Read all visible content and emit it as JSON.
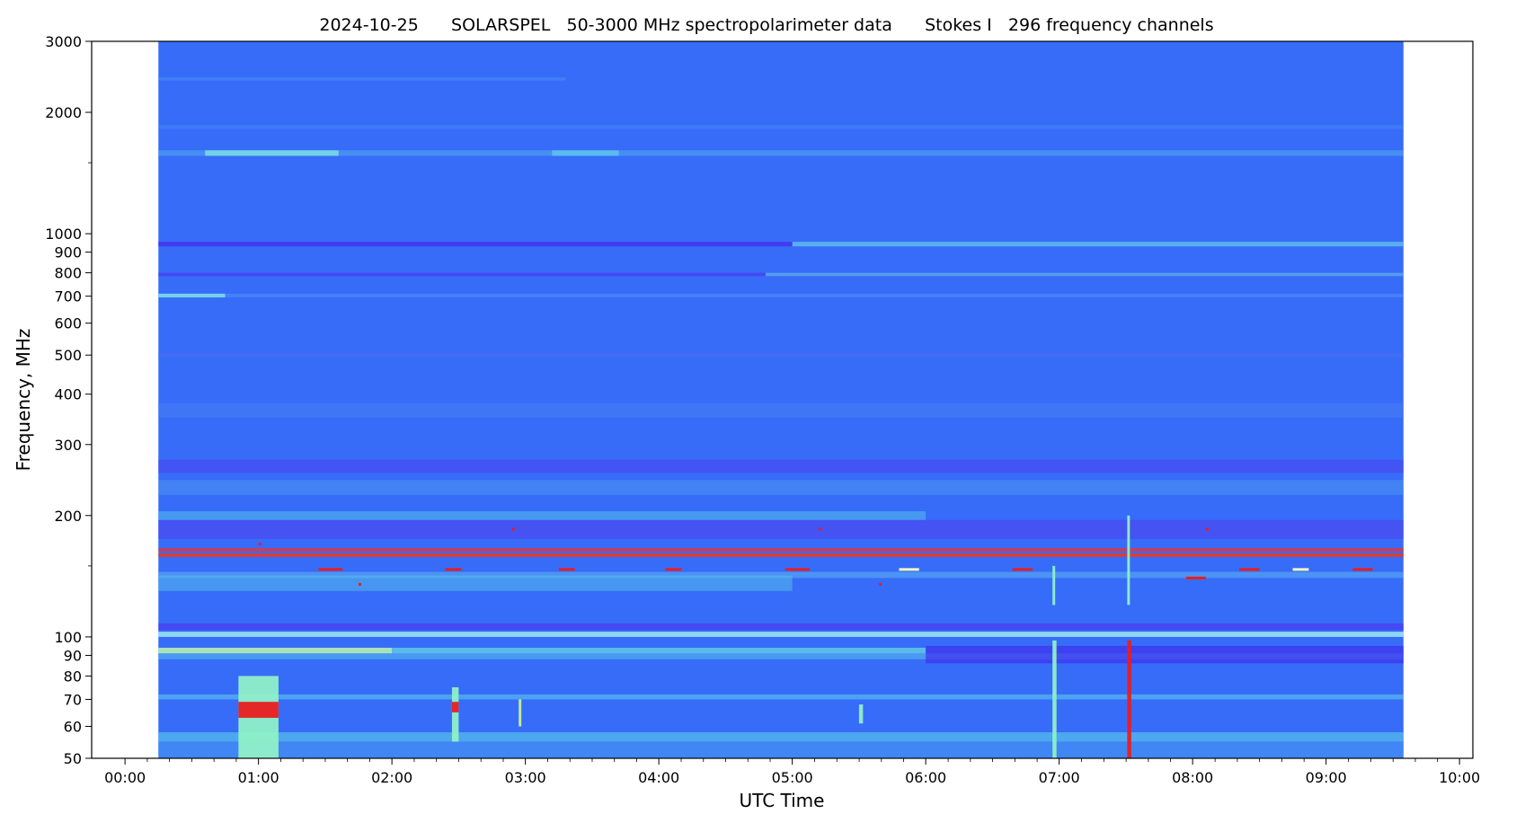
{
  "chart_data": {
    "type": "heatmap",
    "title": "2024-10-25      SOLARSPEL   50-3000 MHz spectropolarimeter data      Stokes I   296 frequency channels",
    "xlabel": "UTC Time",
    "ylabel": "Frequency, MHz",
    "x_unit": "hours",
    "xlim": [
      -0.25,
      10.1
    ],
    "data_time_range": [
      0.25,
      9.58
    ],
    "ylim": [
      50,
      3000
    ],
    "yscale": "log",
    "x_ticks": [
      {
        "value": 0,
        "label": "00:00"
      },
      {
        "value": 1,
        "label": "01:00"
      },
      {
        "value": 2,
        "label": "02:00"
      },
      {
        "value": 3,
        "label": "03:00"
      },
      {
        "value": 4,
        "label": "04:00"
      },
      {
        "value": 5,
        "label": "05:00"
      },
      {
        "value": 6,
        "label": "06:00"
      },
      {
        "value": 7,
        "label": "07:00"
      },
      {
        "value": 8,
        "label": "08:00"
      },
      {
        "value": 9,
        "label": "09:00"
      },
      {
        "value": 10,
        "label": "10:00"
      }
    ],
    "y_ticks": [
      {
        "value": 50,
        "label": "50"
      },
      {
        "value": 60,
        "label": "60"
      },
      {
        "value": 70,
        "label": "70"
      },
      {
        "value": 80,
        "label": "80"
      },
      {
        "value": 90,
        "label": "90"
      },
      {
        "value": 100,
        "label": "100"
      },
      {
        "value": 200,
        "label": "200"
      },
      {
        "value": 300,
        "label": "300"
      },
      {
        "value": 400,
        "label": "400"
      },
      {
        "value": 500,
        "label": "500"
      },
      {
        "value": 600,
        "label": "600"
      },
      {
        "value": 700,
        "label": "700"
      },
      {
        "value": 800,
        "label": "800"
      },
      {
        "value": 900,
        "label": "900"
      },
      {
        "value": 1000,
        "label": "1000"
      },
      {
        "value": 2000,
        "label": "2000"
      },
      {
        "value": 3000,
        "label": "3000"
      }
    ],
    "y_minor_ticks": [
      150,
      1500
    ],
    "x_minor_tick_step": 0.1667,
    "background_color": "#376cf9",
    "bands": [
      {
        "f_low": 2400,
        "f_high": 2440,
        "t_start": 0.25,
        "t_end": 3.3,
        "color": "#4a8cf5",
        "opacity": 0.6
      },
      {
        "f_low": 1560,
        "f_high": 1610,
        "t_start": 0.25,
        "t_end": 9.58,
        "color": "#4e9cf0",
        "opacity": 0.7
      },
      {
        "f_low": 1560,
        "f_high": 1610,
        "t_start": 0.6,
        "t_end": 1.6,
        "color": "#7fe3e0",
        "opacity": 0.8
      },
      {
        "f_low": 1560,
        "f_high": 1610,
        "t_start": 3.2,
        "t_end": 3.7,
        "color": "#5fc8ec",
        "opacity": 0.8
      },
      {
        "f_low": 1820,
        "f_high": 1860,
        "t_start": 0.25,
        "t_end": 9.58,
        "color": "#4588f3",
        "opacity": 0.5
      },
      {
        "f_low": 930,
        "f_high": 955,
        "t_start": 0.25,
        "t_end": 9.58,
        "color": "#4630ee",
        "opacity": 0.8
      },
      {
        "f_low": 930,
        "f_high": 955,
        "t_start": 5.0,
        "t_end": 9.58,
        "color": "#5fcaf0",
        "opacity": 0.8
      },
      {
        "f_low": 785,
        "f_high": 800,
        "t_start": 0.25,
        "t_end": 9.58,
        "color": "#4a3aee",
        "opacity": 0.7
      },
      {
        "f_low": 785,
        "f_high": 800,
        "t_start": 4.8,
        "t_end": 9.58,
        "color": "#5cc0ee",
        "opacity": 0.7
      },
      {
        "f_low": 695,
        "f_high": 710,
        "t_start": 0.25,
        "t_end": 9.58,
        "color": "#4f8ef4",
        "opacity": 0.6
      },
      {
        "f_low": 695,
        "f_high": 710,
        "t_start": 0.25,
        "t_end": 0.75,
        "color": "#7ad8e6",
        "opacity": 0.9
      },
      {
        "f_low": 495,
        "f_high": 505,
        "t_start": 0.25,
        "t_end": 9.58,
        "color": "#4c6ef2",
        "opacity": 0.6
      },
      {
        "f_low": 350,
        "f_high": 380,
        "t_start": 0.25,
        "t_end": 9.58,
        "color": "#4a7ef4",
        "opacity": 0.5
      },
      {
        "f_low": 255,
        "f_high": 275,
        "t_start": 0.25,
        "t_end": 9.58,
        "color": "#4a44ef",
        "opacity": 0.6
      },
      {
        "f_low": 225,
        "f_high": 245,
        "t_start": 0.25,
        "t_end": 9.58,
        "color": "#4f98f2",
        "opacity": 0.5
      },
      {
        "f_low": 175,
        "f_high": 195,
        "t_start": 0.25,
        "t_end": 9.58,
        "color": "#4e42ee",
        "opacity": 0.6
      },
      {
        "f_low": 195,
        "f_high": 205,
        "t_start": 0.25,
        "t_end": 6.0,
        "color": "#56c4ea",
        "opacity": 0.5
      },
      {
        "f_low": 163,
        "f_high": 166,
        "t_start": 0.25,
        "t_end": 9.58,
        "color": "#d83a4a",
        "opacity": 0.9
      },
      {
        "f_low": 158,
        "f_high": 161,
        "t_start": 0.25,
        "t_end": 9.58,
        "color": "#e23b2b",
        "opacity": 1.0
      },
      {
        "f_low": 140,
        "f_high": 145,
        "t_start": 0.25,
        "t_end": 9.58,
        "color": "#5aaef2",
        "opacity": 0.6
      },
      {
        "f_low": 130,
        "f_high": 142,
        "t_start": 0.25,
        "t_end": 5.0,
        "color": "#58c0ea",
        "opacity": 0.5
      },
      {
        "f_low": 104,
        "f_high": 108,
        "t_start": 0.25,
        "t_end": 9.58,
        "color": "#4a3aee",
        "opacity": 0.7
      },
      {
        "f_low": 100,
        "f_high": 103,
        "t_start": 0.25,
        "t_end": 9.58,
        "color": "#a6f2f2",
        "opacity": 0.8
      },
      {
        "f_low": 91,
        "f_high": 94,
        "t_start": 0.25,
        "t_end": 2.0,
        "color": "#b4f0b0",
        "opacity": 0.9
      },
      {
        "f_low": 91,
        "f_high": 94,
        "t_start": 2.0,
        "t_end": 6.0,
        "color": "#6adbe4",
        "opacity": 0.7
      },
      {
        "f_low": 88,
        "f_high": 91,
        "t_start": 0.25,
        "t_end": 9.58,
        "color": "#56b8ee",
        "opacity": 0.6
      },
      {
        "f_low": 86,
        "f_high": 95,
        "t_start": 6.0,
        "t_end": 9.58,
        "color": "#4030ee",
        "opacity": 0.7
      },
      {
        "f_low": 70,
        "f_high": 72,
        "t_start": 0.25,
        "t_end": 9.58,
        "color": "#5cc6ec",
        "opacity": 0.6
      },
      {
        "f_low": 55,
        "f_high": 58,
        "t_start": 0.25,
        "t_end": 9.58,
        "color": "#5cd0e8",
        "opacity": 0.6
      },
      {
        "f_low": 50,
        "f_high": 55,
        "t_start": 0.25,
        "t_end": 9.58,
        "color": "#4aa0f0",
        "opacity": 0.5
      }
    ],
    "bursts": [
      {
        "f_low": 50,
        "f_high": 80,
        "t_start": 0.85,
        "t_end": 1.15,
        "color": "#8ff0c8"
      },
      {
        "f_low": 63,
        "f_high": 69,
        "t_start": 0.85,
        "t_end": 1.15,
        "color": "#e81e1e"
      },
      {
        "f_low": 55,
        "f_high": 75,
        "t_start": 2.45,
        "t_end": 2.5,
        "color": "#8ff0c8"
      },
      {
        "f_low": 65,
        "f_high": 69,
        "t_start": 2.45,
        "t_end": 2.5,
        "color": "#e81e1e"
      },
      {
        "f_low": 60,
        "f_high": 70,
        "t_start": 2.95,
        "t_end": 2.97,
        "color": "#c8f090"
      },
      {
        "f_low": 61,
        "f_high": 68,
        "t_start": 5.5,
        "t_end": 5.53,
        "color": "#8ff0c8"
      },
      {
        "f_low": 50,
        "f_high": 98,
        "t_start": 6.95,
        "t_end": 6.98,
        "color": "#8ff0c8"
      },
      {
        "f_low": 120,
        "f_high": 150,
        "t_start": 6.95,
        "t_end": 6.97,
        "color": "#8ff0c8"
      },
      {
        "f_low": 50,
        "f_high": 98,
        "t_start": 7.51,
        "t_end": 7.54,
        "color": "#e81e1e"
      },
      {
        "f_low": 120,
        "f_high": 200,
        "t_start": 7.51,
        "t_end": 7.53,
        "color": "#8ff0c8"
      }
    ],
    "dots": [
      {
        "f": 147,
        "t": 1.45,
        "w": 0.18,
        "color": "#e81e1e"
      },
      {
        "f": 147,
        "t": 2.4,
        "w": 0.12,
        "color": "#e81e1e"
      },
      {
        "f": 147,
        "t": 3.25,
        "w": 0.12,
        "color": "#e81e1e"
      },
      {
        "f": 147,
        "t": 4.05,
        "w": 0.12,
        "color": "#e81e1e"
      },
      {
        "f": 147,
        "t": 4.95,
        "w": 0.18,
        "color": "#e81e1e"
      },
      {
        "f": 147,
        "t": 5.8,
        "w": 0.15,
        "color": "#f5f5c0"
      },
      {
        "f": 147,
        "t": 6.65,
        "w": 0.15,
        "color": "#e81e1e"
      },
      {
        "f": 147,
        "t": 8.35,
        "w": 0.15,
        "color": "#e81e1e"
      },
      {
        "f": 147,
        "t": 8.75,
        "w": 0.12,
        "color": "#f5f5c0"
      },
      {
        "f": 147,
        "t": 9.2,
        "w": 0.15,
        "color": "#e81e1e"
      },
      {
        "f": 140,
        "t": 7.95,
        "w": 0.15,
        "color": "#e81e1e"
      },
      {
        "f": 170,
        "t": 1.0,
        "w": 0.02,
        "color": "#e81e1e"
      },
      {
        "f": 185,
        "t": 2.9,
        "w": 0.02,
        "color": "#e81e1e"
      },
      {
        "f": 185,
        "t": 5.2,
        "w": 0.02,
        "color": "#e81e1e"
      },
      {
        "f": 185,
        "t": 8.1,
        "w": 0.02,
        "color": "#e81e1e"
      },
      {
        "f": 135,
        "t": 5.65,
        "w": 0.02,
        "color": "#e81e1e"
      },
      {
        "f": 135,
        "t": 1.75,
        "w": 0.02,
        "color": "#e81e1e"
      }
    ]
  }
}
